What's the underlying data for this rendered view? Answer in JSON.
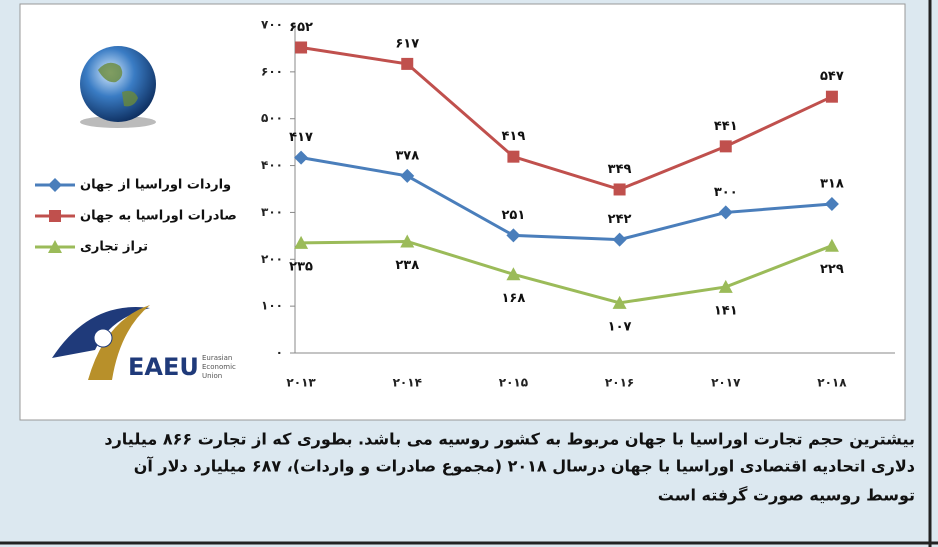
{
  "chart_data": {
    "type": "line",
    "categories": [
      "۲۰۱۳",
      "۲۰۱۴",
      "۲۰۱۵",
      "۲۰۱۶",
      "۲۰۱۷",
      "۲۰۱۸"
    ],
    "series": [
      {
        "name": "واردات اوراسیا از جهان",
        "color": "#4a7ebb",
        "marker": "diamond",
        "label_side": "above",
        "values": [
          417,
          378,
          251,
          242,
          300,
          318
        ],
        "value_labels": [
          "۴۱۷",
          "۳۷۸",
          "۲۵۱",
          "۲۴۲",
          "۳۰۰",
          "۳۱۸"
        ]
      },
      {
        "name": "صادرات اوراسیا به جهان",
        "color": "#c0504d",
        "marker": "square",
        "label_side": "above",
        "values": [
          652,
          617,
          419,
          349,
          441,
          547
        ],
        "value_labels": [
          "۶۵۲",
          "۶۱۷",
          "۴۱۹",
          "۳۴۹",
          "۴۴۱",
          "۵۴۷"
        ]
      },
      {
        "name": "تراز تجاری",
        "color": "#9bbb59",
        "marker": "triangle",
        "label_side": "below",
        "values": [
          235,
          238,
          168,
          107,
          141,
          229
        ],
        "value_labels": [
          "۲۳۵",
          "۲۳۸",
          "۱۶۸",
          "۱۰۷",
          "۱۴۱",
          "۲۲۹"
        ]
      }
    ],
    "ylim": [
      0,
      700
    ],
    "yticks": [
      {
        "value": 0,
        "label": "۰"
      },
      {
        "value": 100,
        "label": "۱۰۰"
      },
      {
        "value": 200,
        "label": "۲۰۰"
      },
      {
        "value": 300,
        "label": "۳۰۰"
      },
      {
        "value": 400,
        "label": "۴۰۰"
      },
      {
        "value": 500,
        "label": "۵۰۰"
      },
      {
        "value": 600,
        "label": "۶۰۰"
      },
      {
        "value": 700,
        "label": "۷۰۰"
      }
    ],
    "grid": false,
    "legend": "left"
  },
  "logo": {
    "name": "EAEU",
    "subtitle": [
      "Eurasian",
      "Economic",
      "Union"
    ]
  },
  "caption": [
    "بیشترین حجم تجارت اوراسیا با جهان مربوط به کشور روسیه می باشد. بطوری که از تجارت ۸۶۶ میلیارد",
    "دلاری اتحادیه اقتصادی اوراسیا با جهان درسال ۲۰۱۸ (مجموع صادرات و واردات)، ۶۸۷ میلیارد دلار آن",
    "توسط روسیه صورت گرفته است"
  ]
}
